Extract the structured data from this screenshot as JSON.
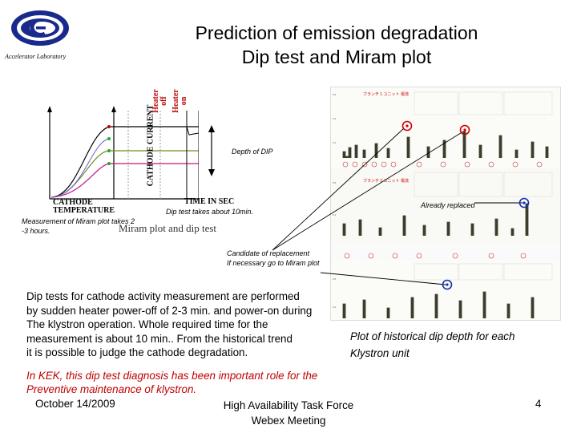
{
  "header": {
    "lab_name": "Accelerator Laboratory",
    "title_line1": "Prediction of emission degradation",
    "title_line2": "Dip test and Miram plot"
  },
  "colors": {
    "logo_blue": "#1a2a8c",
    "kek_text": "#c00000",
    "marker_red": "#d00000",
    "marker_blue": "#1030b0"
  },
  "diagram": {
    "y_axis_label": "CATHODE CURRENT",
    "x_axis_label": "CATHODE TEMPERATURE",
    "time_label": "TIME IN SEC",
    "heater_off": "Heater off",
    "heater_on": "Heater on"
  },
  "annotations": {
    "depth_of_dip": "Depth of DIP",
    "dip_test_time": "Dip test takes about 10min.",
    "already_replaced": "Already replaced",
    "measurement_line1": "Measurement of Miram plot takes 2",
    "measurement_line2": "-3 hours.",
    "miram_label": "Miram plot and dip test",
    "candidate_line1": "Candidate of replacement",
    "candidate_line2": "If necessary go to Miram plot"
  },
  "body": {
    "lines": [
      "Dip tests for cathode activity measurement are performed",
      "by sudden heater power-off of 2-3 min. and power-on during",
      "The klystron operation. Whole required time for the",
      "measurement is about 10 min.. From the historical trend",
      "it is possible to judge the cathode degradation."
    ],
    "caption_line1": "Plot of historical dip depth for each",
    "caption_line2": "Klystron unit",
    "kek_line1": "In KEK, this dip test diagnosis has been important role for the",
    "kek_line2": "Preventive maintenance of klystron."
  },
  "footer": {
    "date": "October 14/2009",
    "event_line1": "High Availability Task Force",
    "event_line2": "Webex Meeting",
    "page_number": "4"
  }
}
